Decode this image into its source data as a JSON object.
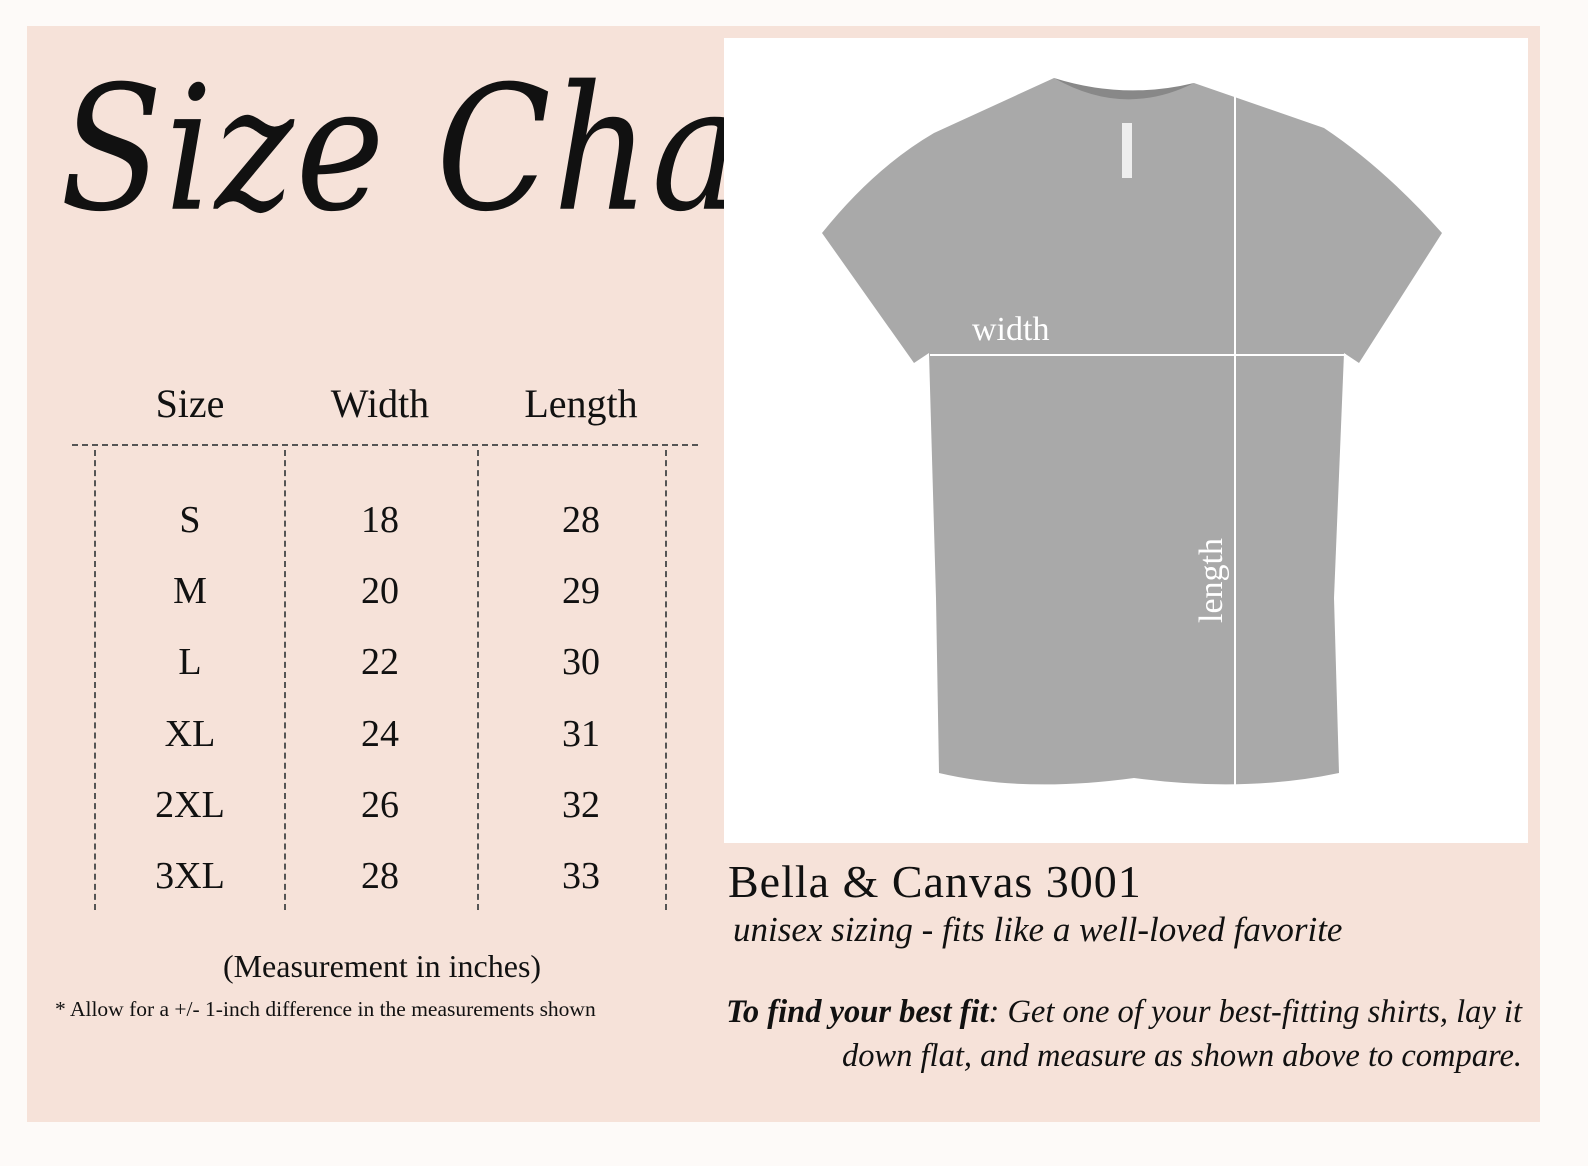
{
  "title": "Size Chart",
  "table": {
    "headers": [
      "Size",
      "Width",
      "Length"
    ],
    "rows": [
      [
        "S",
        "18",
        "28"
      ],
      [
        "M",
        "20",
        "29"
      ],
      [
        "L",
        "22",
        "30"
      ],
      [
        "XL",
        "24",
        "31"
      ],
      [
        "2XL",
        "26",
        "32"
      ],
      [
        "3XL",
        "28",
        "33"
      ]
    ]
  },
  "notes": {
    "unit": "(Measurement in inches)",
    "tolerance": "* Allow for a +/- 1-inch difference in the measurements shown"
  },
  "photo": {
    "width_label": "width",
    "length_label": "length",
    "shirt_color": "#a9a9a9"
  },
  "product": {
    "name": "Bella & Canvas 3001",
    "tagline": "unisex sizing - fits like a well-loved favorite",
    "fit_lead": "To find your best fit",
    "fit_text": ": Get one of your best-fitting shirts, lay it down flat, and measure as shown above to compare."
  },
  "colors": {
    "background": "#f6e2d9",
    "page": "#fdfaf8",
    "text": "#111111"
  }
}
